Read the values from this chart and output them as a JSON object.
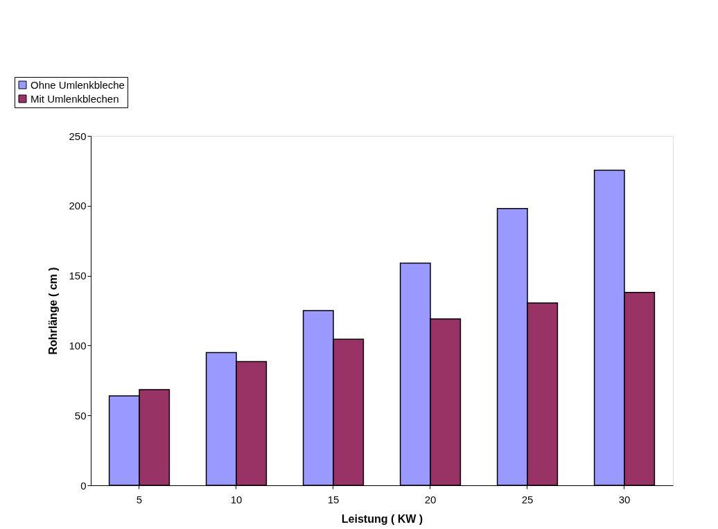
{
  "chart_data": {
    "type": "bar",
    "xlabel": "Leistung ( KW )",
    "ylabel": "Rohrlänge ( cm )",
    "categories": [
      "5",
      "10",
      "15",
      "20",
      "25",
      "30"
    ],
    "series": [
      {
        "name": "Ohne Umlenkbleche",
        "color": "#9999ff",
        "values": [
          64,
          95,
          125,
          159,
          198,
          225.5
        ]
      },
      {
        "name": "Mit Umlenkblechen",
        "color": "#993366",
        "values": [
          68.5,
          88.5,
          104.5,
          119,
          130.5,
          138
        ]
      }
    ],
    "ylim": [
      0,
      250
    ],
    "yticks": [
      0,
      50,
      100,
      150,
      200,
      250
    ],
    "grid": false,
    "legend": "top left"
  }
}
